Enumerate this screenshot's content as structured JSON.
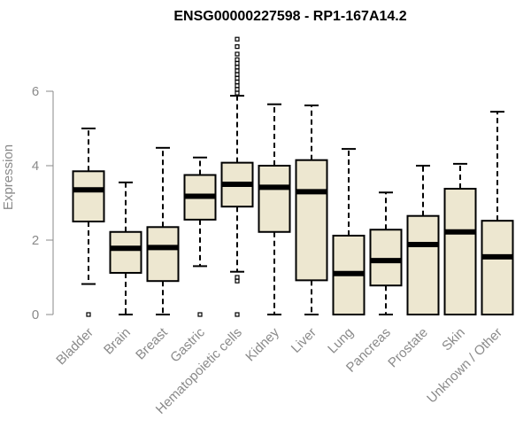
{
  "chart_data": {
    "type": "boxplot",
    "title": "ENSG00000227598 - RP1-167A14.2",
    "xlabel": "",
    "ylabel": "Expression",
    "ylim": [
      0,
      7.4
    ],
    "yticks": [
      0,
      2,
      4,
      6
    ],
    "categories": [
      "Bladder",
      "Brain",
      "Breast",
      "Gastric",
      "Hematopoietic cells",
      "Kidney",
      "Liver",
      "Lung",
      "Pancreas",
      "Prostate",
      "Skin",
      "Unknown / Other"
    ],
    "box_color": "#ede7d0",
    "boxes": [
      {
        "whisker_low": 0.82,
        "q1": 2.5,
        "median": 3.35,
        "q3": 3.85,
        "whisker_high": 5.0,
        "outliers": [
          0
        ]
      },
      {
        "whisker_low": 0,
        "q1": 1.12,
        "median": 1.78,
        "q3": 2.22,
        "whisker_high": 3.55,
        "outliers": []
      },
      {
        "whisker_low": 0,
        "q1": 0.9,
        "median": 1.8,
        "q3": 2.35,
        "whisker_high": 4.48,
        "outliers": []
      },
      {
        "whisker_low": 1.3,
        "q1": 2.55,
        "median": 3.18,
        "q3": 3.75,
        "whisker_high": 4.22,
        "outliers": [
          0
        ]
      },
      {
        "whisker_low": 1.15,
        "q1": 2.9,
        "median": 3.5,
        "q3": 4.08,
        "whisker_high": 5.88,
        "outliers": [
          0,
          0.9,
          1.0,
          5.95,
          6.05,
          6.15,
          6.25,
          6.35,
          6.45,
          6.55,
          6.65,
          6.75,
          6.85,
          7.0,
          7.2,
          7.4
        ]
      },
      {
        "whisker_low": 0,
        "q1": 2.22,
        "median": 3.42,
        "q3": 4.0,
        "whisker_high": 5.65,
        "outliers": []
      },
      {
        "whisker_low": 0,
        "q1": 0.92,
        "median": 3.3,
        "q3": 4.15,
        "whisker_high": 5.62,
        "outliers": []
      },
      {
        "whisker_low": 0,
        "q1": 0,
        "median": 1.1,
        "q3": 2.12,
        "whisker_high": 4.45,
        "outliers": []
      },
      {
        "whisker_low": 0,
        "q1": 0.78,
        "median": 1.45,
        "q3": 2.28,
        "whisker_high": 3.28,
        "outliers": []
      },
      {
        "whisker_low": 0,
        "q1": 0,
        "median": 1.88,
        "q3": 2.65,
        "whisker_high": 4.0,
        "outliers": []
      },
      {
        "whisker_low": 0,
        "q1": 0,
        "median": 2.22,
        "q3": 3.38,
        "whisker_high": 4.05,
        "outliers": []
      },
      {
        "whisker_low": 0,
        "q1": 0,
        "median": 1.55,
        "q3": 2.52,
        "whisker_high": 5.45,
        "outliers": []
      }
    ]
  }
}
